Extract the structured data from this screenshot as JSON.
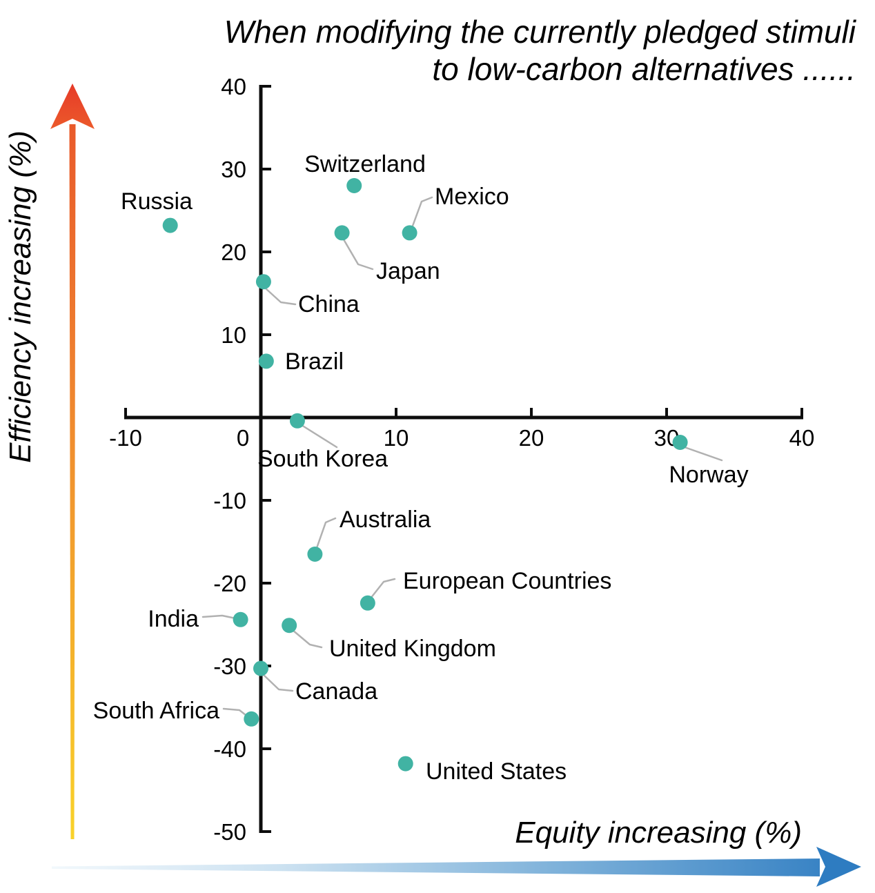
{
  "title": {
    "line1": "When modifying the currently pledged stimuli",
    "line2": "to low-carbon alternatives ......"
  },
  "axes": {
    "x_label": "Equity increasing (%)",
    "y_label": "Efficiency increasing (%)",
    "x_ticks": [
      -10,
      0,
      10,
      20,
      30,
      40
    ],
    "y_ticks": [
      40,
      30,
      20,
      10,
      -10,
      -20,
      -30,
      -40,
      -50
    ]
  },
  "colors": {
    "point": "#41b3a3",
    "leader": "#b1b1b1",
    "axis": "#0d0d0d",
    "arrow_up_red": "#e8432a",
    "arrow_up_orange": "#ee7e2f",
    "arrow_up_yellow": "#f9d22a",
    "arrow_right_blue": "#2e7cc1",
    "arrow_right_light": "#f2f8fc"
  },
  "chart_data": {
    "type": "scatter",
    "title": "When modifying the currently pledged stimuli to low-carbon alternatives ......",
    "xlabel": "Equity increasing (%)",
    "ylabel": "Efficiency increasing (%)",
    "xlim": [
      -10,
      40
    ],
    "ylim": [
      -50,
      40
    ],
    "grid": false,
    "points": [
      {
        "name": "Russia",
        "x": -6.7,
        "y": 23.2
      },
      {
        "name": "Switzerland",
        "x": 6.9,
        "y": 28.0
      },
      {
        "name": "Japan",
        "x": 6.0,
        "y": 22.3
      },
      {
        "name": "Mexico",
        "x": 11.0,
        "y": 22.3
      },
      {
        "name": "China",
        "x": 0.2,
        "y": 16.4
      },
      {
        "name": "Brazil",
        "x": 0.4,
        "y": 6.8
      },
      {
        "name": "South Korea",
        "x": 2.7,
        "y": -0.4
      },
      {
        "name": "Norway",
        "x": 31.0,
        "y": -3.0
      },
      {
        "name": "Australia",
        "x": 4.0,
        "y": -16.5
      },
      {
        "name": "European Countries",
        "x": 7.9,
        "y": -22.4
      },
      {
        "name": "India",
        "x": -1.5,
        "y": -24.4
      },
      {
        "name": "United Kingdom",
        "x": 2.1,
        "y": -25.1
      },
      {
        "name": "Canada",
        "x": 0.0,
        "y": -30.3
      },
      {
        "name": "South Africa",
        "x": -0.7,
        "y": -36.4
      },
      {
        "name": "United States",
        "x": 10.7,
        "y": -41.8
      }
    ]
  }
}
